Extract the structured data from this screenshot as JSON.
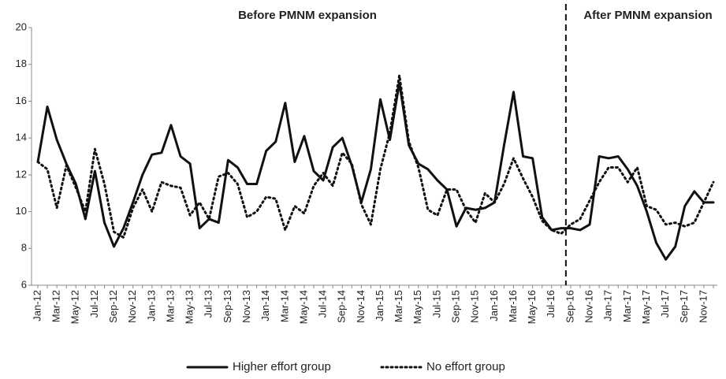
{
  "chart_data": {
    "type": "line",
    "annotations": [
      "Before PMNM expansion",
      "After PMNM expansion"
    ],
    "divider_before": "Sep-16",
    "categories": [
      "Jan-12",
      null,
      "Mar-12",
      null,
      "May-12",
      null,
      "Jul-12",
      null,
      "Sep-12",
      null,
      "Nov-12",
      null,
      "Jan-13",
      null,
      "Mar-13",
      null,
      "May-13",
      null,
      "Jul-13",
      null,
      "Sep-13",
      null,
      "Nov-13",
      null,
      "Jan-14",
      null,
      "Mar-14",
      null,
      "May-14",
      null,
      "Jul-14",
      null,
      "Sep-14",
      null,
      "Nov-14",
      null,
      "Jan-15",
      null,
      "Mar-15",
      null,
      "May-15",
      null,
      "Jul-15",
      null,
      "Sep-15",
      null,
      "Nov-15",
      null,
      "Jan-16",
      null,
      "Mar-16",
      null,
      "May-16",
      null,
      "Jul-16",
      null,
      "Sep-16",
      null,
      "Nov-16",
      null,
      "Jan-17",
      null,
      "Mar-17",
      null,
      "May-17",
      null,
      "Jul-17",
      null,
      "Sep-17",
      null,
      "Nov-17",
      null
    ],
    "series": [
      {
        "name": "Higher effort group",
        "color": "#111111",
        "style": "solid",
        "values": [
          12.7,
          15.7,
          13.9,
          12.6,
          11.5,
          9.6,
          12.2,
          9.4,
          8.1,
          9.1,
          10.5,
          12.0,
          13.1,
          13.2,
          14.7,
          13.0,
          12.6,
          9.1,
          9.6,
          9.4,
          12.8,
          12.4,
          11.5,
          11.5,
          13.3,
          13.8,
          15.9,
          12.7,
          14.1,
          12.2,
          11.7,
          13.5,
          14.0,
          12.5,
          10.5,
          12.3,
          16.1,
          13.9,
          17.0,
          13.6,
          12.6,
          12.3,
          11.7,
          11.2,
          9.2,
          10.2,
          10.1,
          10.2,
          10.5,
          13.6,
          16.5,
          13.0,
          12.9,
          9.7,
          9.0,
          9.1,
          9.1,
          9.0,
          9.3,
          13.0,
          12.9,
          13.0,
          12.3,
          11.4,
          10.0,
          8.3,
          7.4,
          8.1,
          10.3,
          11.1,
          10.5,
          10.5
        ]
      },
      {
        "name": "No effort group",
        "color": "#111111",
        "style": "dotted",
        "values": [
          12.7,
          12.3,
          10.2,
          12.5,
          11.3,
          10.0,
          13.4,
          11.5,
          8.9,
          8.6,
          10.2,
          11.2,
          10.0,
          11.6,
          11.4,
          11.3,
          9.8,
          10.5,
          9.6,
          11.9,
          12.1,
          11.5,
          9.7,
          10.0,
          10.8,
          10.7,
          9.0,
          10.3,
          9.9,
          11.4,
          12.1,
          11.4,
          13.2,
          12.6,
          10.4,
          9.3,
          12.3,
          14.3,
          17.4,
          13.8,
          12.4,
          10.1,
          9.8,
          11.2,
          11.2,
          10.1,
          9.4,
          11.0,
          10.5,
          11.5,
          12.9,
          11.8,
          10.8,
          9.5,
          9.0,
          8.8,
          9.3,
          9.6,
          10.6,
          11.6,
          12.4,
          12.4,
          11.6,
          12.4,
          10.3,
          10.1,
          9.3,
          9.4,
          9.2,
          9.4,
          10.5,
          11.6
        ]
      }
    ],
    "ylim": [
      6,
      20
    ],
    "yticks": [
      6,
      8,
      10,
      12,
      14,
      16,
      18,
      20
    ],
    "grid": false,
    "legend": "bottom"
  }
}
